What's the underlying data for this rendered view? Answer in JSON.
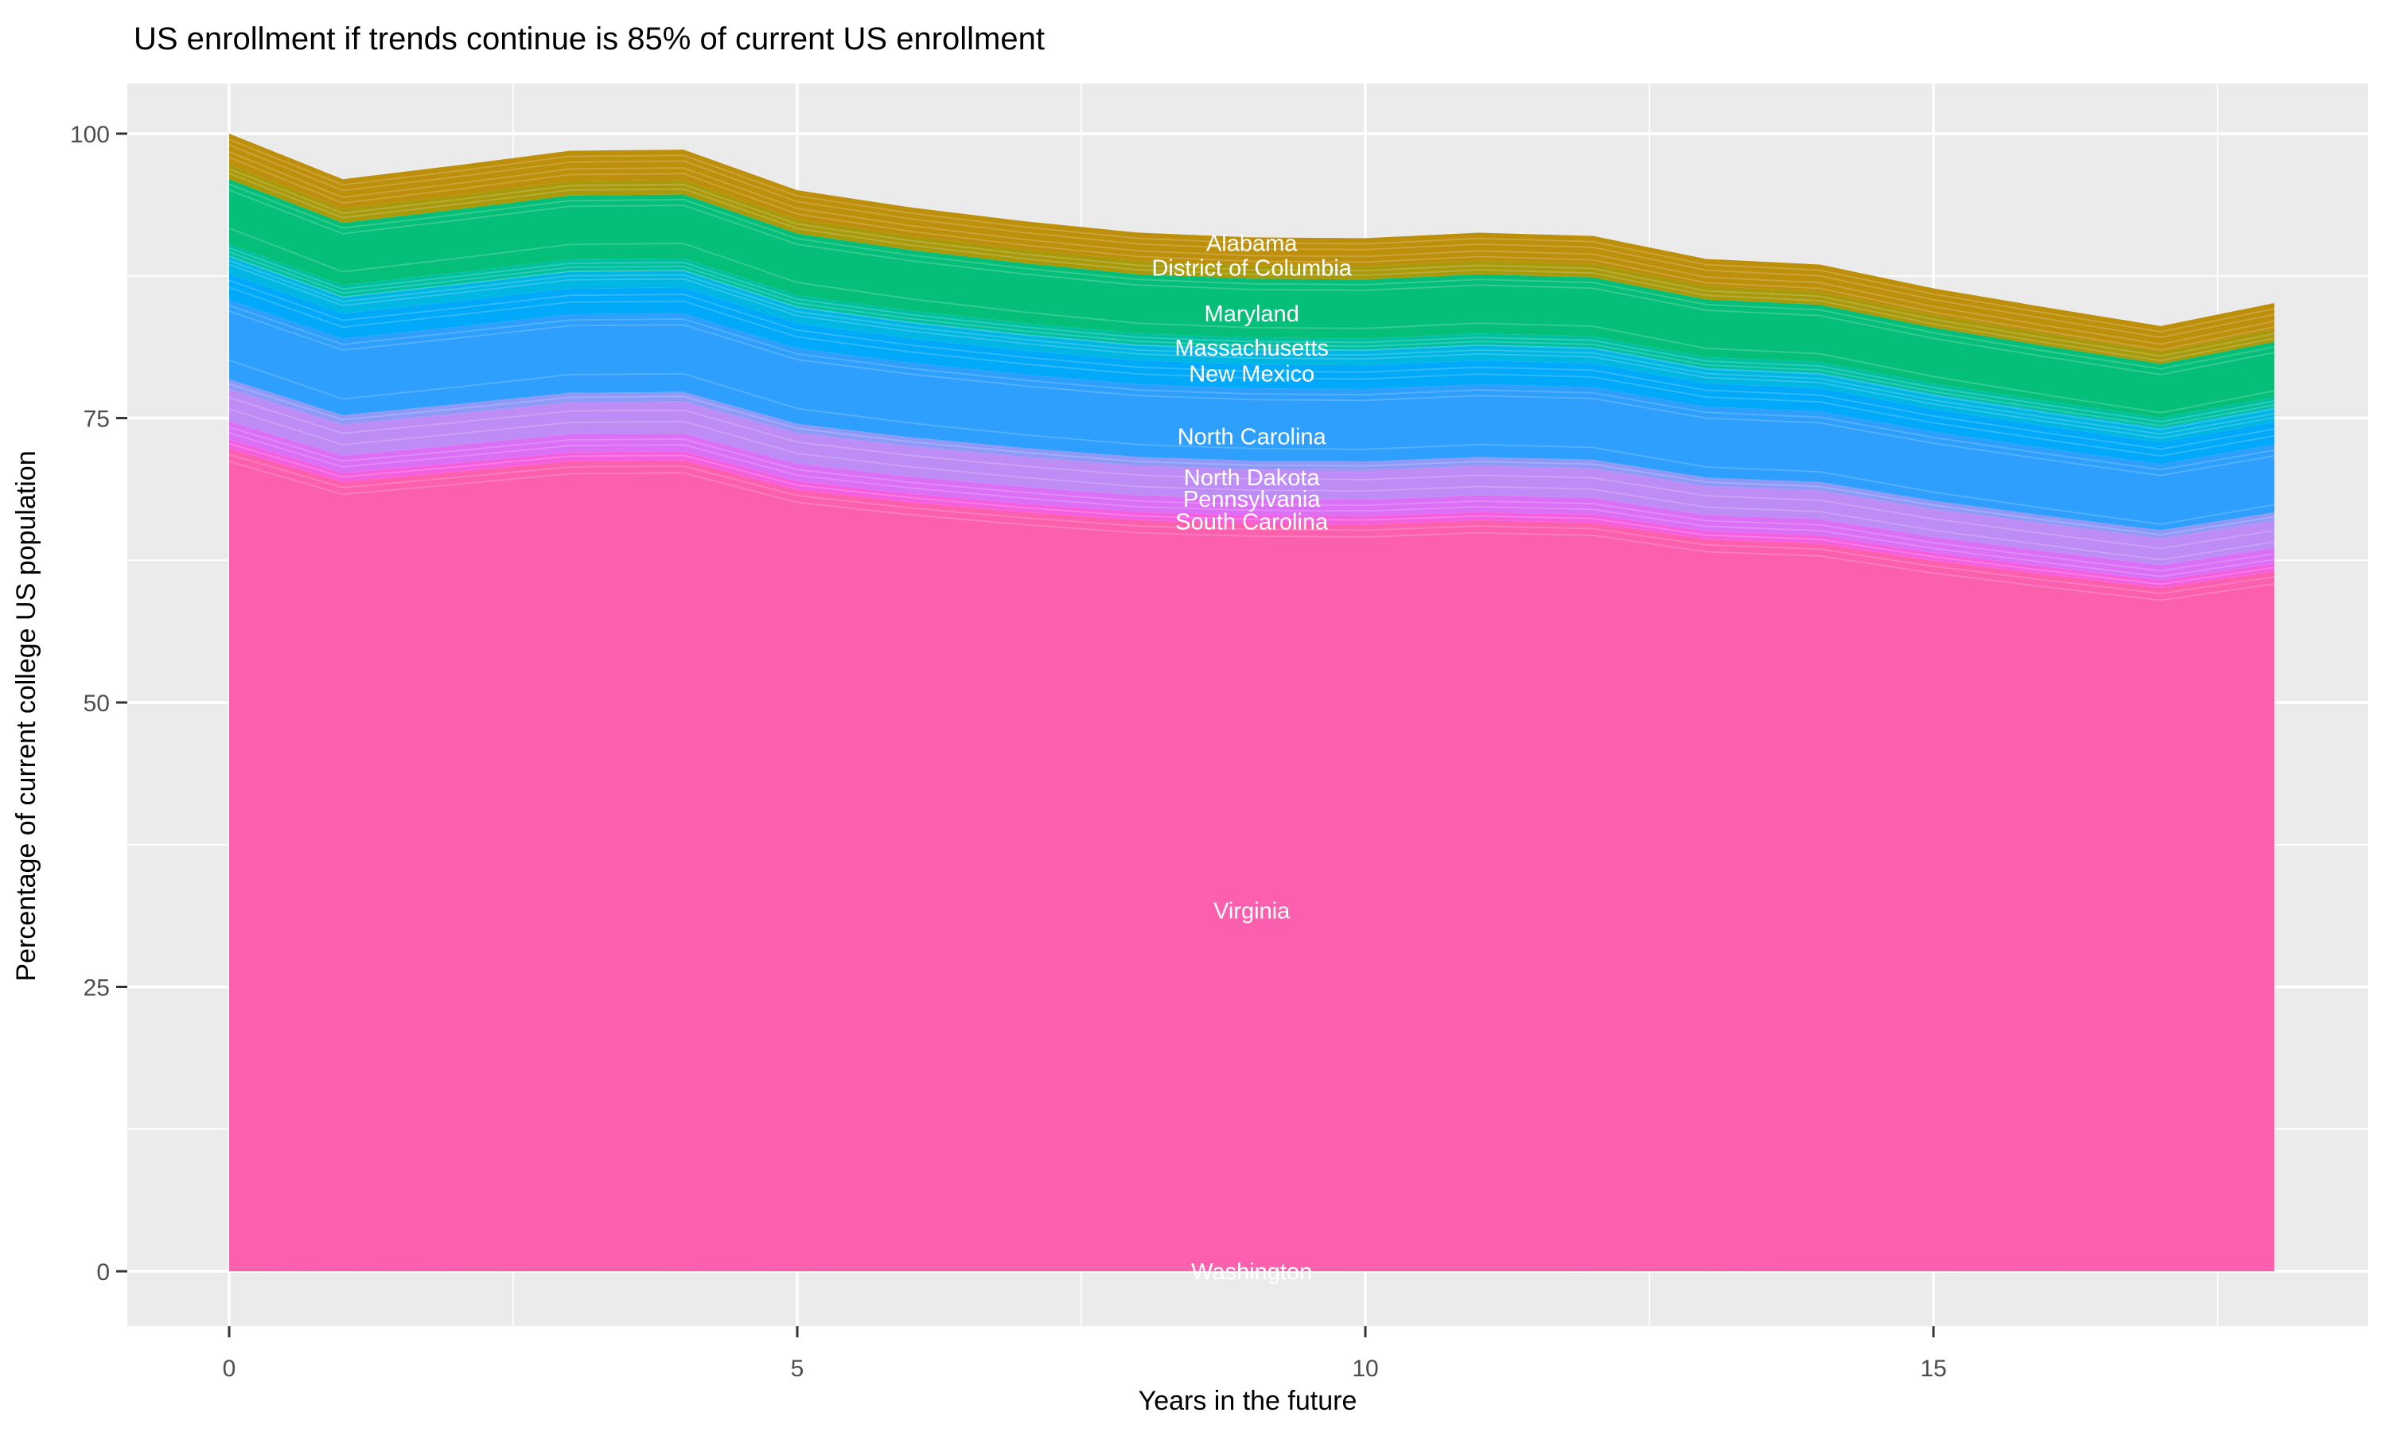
{
  "title": "US enrollment if trends continue is 85% of current US enrollment",
  "axes": {
    "x_title": "Years in the future",
    "y_title": "Percentage of current college US population"
  },
  "chart_data": {
    "type": "area",
    "stacked": true,
    "title": "US enrollment if trends continue is 85% of current US enrollment",
    "xlabel": "Years in the future",
    "ylabel": "Percentage of current college US population",
    "xlim": [
      0,
      18
    ],
    "ylim": [
      0,
      100
    ],
    "x_ticks": [
      0,
      5,
      10,
      15
    ],
    "y_ticks": [
      0,
      25,
      50,
      75,
      100
    ],
    "x_minor_gridlines": [
      2.5,
      7.5,
      12.5,
      17.5
    ],
    "y_minor_gridlines": [
      12.5,
      37.5,
      62.5,
      87.5
    ],
    "grid": true,
    "legend": "none",
    "panel_bg": "#EBEBEB",
    "grid_color": "#FFFFFF",
    "axis_text_color": "#4D4D4D",
    "area_label_color": "#FFFFFF",
    "x": [
      0,
      1,
      2,
      3,
      4,
      5,
      6,
      7,
      8,
      9,
      10,
      11,
      12,
      13,
      14,
      15,
      16,
      17,
      18
    ],
    "total_top": [
      100,
      96,
      97.2,
      98.5,
      98.6,
      95,
      93.5,
      92.3,
      91.3,
      90.9,
      90.8,
      91.3,
      91,
      89,
      88.5,
      86.4,
      84.7,
      83.1,
      85.1
    ],
    "stack_order": "bottom-to-top",
    "series": [
      {
        "name": "Washington",
        "color": "#FC5FAD",
        "values": [
          0.4,
          0.38,
          0.39,
          0.39,
          0.39,
          0.38,
          0.37,
          0.37,
          0.37,
          0.36,
          0.36,
          0.37,
          0.36,
          0.36,
          0.35,
          0.35,
          0.34,
          0.33,
          0.34
        ]
      },
      {
        "name": "Virginia",
        "color": "#FC5FAD",
        "values": [
          71.9,
          69.02,
          69.89,
          70.82,
          70.89,
          68.31,
          67.23,
          66.36,
          65.64,
          65.36,
          65.29,
          65.64,
          65.43,
          63.99,
          63.63,
          62.12,
          60.9,
          59.75,
          61.19
        ]
      },
      {
        "name": "South Carolina",
        "color": "#F55FDF",
        "values": [
          0.8,
          0.77,
          0.78,
          0.79,
          0.79,
          0.76,
          0.75,
          0.74,
          0.73,
          0.73,
          0.73,
          0.73,
          0.73,
          0.71,
          0.71,
          0.69,
          0.68,
          0.66,
          0.68
        ]
      },
      {
        "name": "Pennsylvania",
        "color": "#DB70F6",
        "values": [
          1.6,
          1.54,
          1.56,
          1.58,
          1.58,
          1.52,
          1.5,
          1.48,
          1.46,
          1.45,
          1.45,
          1.46,
          1.46,
          1.42,
          1.42,
          1.38,
          1.36,
          1.33,
          1.36
        ]
      },
      {
        "name": "North Dakota",
        "color": "#BE8CF5",
        "values": [
          3.7,
          3.55,
          3.6,
          3.64,
          3.65,
          3.52,
          3.46,
          3.42,
          3.38,
          3.36,
          3.36,
          3.38,
          3.37,
          3.29,
          3.27,
          3.2,
          3.13,
          3.07,
          3.15
        ]
      },
      {
        "name": "North Carolina",
        "color": "#2E9FFC",
        "values": [
          7.0,
          6.72,
          6.8,
          6.9,
          6.9,
          6.65,
          6.55,
          6.46,
          6.39,
          6.36,
          6.36,
          6.39,
          6.37,
          6.23,
          6.2,
          6.05,
          5.93,
          5.82,
          5.96
        ]
      },
      {
        "name": "New Mexico",
        "color": "#00A9F9",
        "values": [
          2.3,
          2.21,
          2.24,
          2.27,
          2.27,
          2.19,
          2.15,
          2.12,
          2.1,
          2.09,
          2.09,
          2.1,
          2.09,
          2.05,
          2.04,
          1.99,
          1.95,
          1.91,
          1.96
        ]
      },
      {
        "name": "Massachusetts",
        "color": "#00B8E0",
        "values": [
          2.6,
          2.5,
          2.53,
          2.56,
          2.56,
          2.47,
          2.43,
          2.4,
          2.37,
          2.36,
          2.36,
          2.37,
          2.37,
          2.31,
          2.3,
          2.25,
          2.2,
          2.16,
          2.21
        ]
      },
      {
        "name": "Maryland",
        "color": "#05BF79",
        "values": [
          5.7,
          5.47,
          5.54,
          5.61,
          5.62,
          5.42,
          5.33,
          5.26,
          5.2,
          5.18,
          5.18,
          5.2,
          5.19,
          5.07,
          5.04,
          4.92,
          4.83,
          4.74,
          4.85
        ]
      },
      {
        "name": "District of Columbia",
        "color": "#A89A0A",
        "values": [
          1.3,
          1.25,
          1.26,
          1.28,
          1.28,
          1.24,
          1.22,
          1.2,
          1.19,
          1.18,
          1.18,
          1.19,
          1.18,
          1.16,
          1.15,
          1.12,
          1.1,
          1.08,
          1.11
        ]
      },
      {
        "name": "Alabama",
        "color": "#BE8F0B",
        "values": [
          2.7,
          2.59,
          2.62,
          2.66,
          2.66,
          2.57,
          2.52,
          2.49,
          2.47,
          2.45,
          2.45,
          2.46,
          2.46,
          2.4,
          2.39,
          2.33,
          2.29,
          2.24,
          2.3
        ]
      }
    ],
    "area_labels": [
      {
        "text": "Alabama",
        "x": 9,
        "y": 90.4
      },
      {
        "text": "District of Columbia",
        "x": 9,
        "y": 88.2
      },
      {
        "text": "Maryland",
        "x": 9,
        "y": 84.2
      },
      {
        "text": "Massachusetts",
        "x": 9,
        "y": 81.2
      },
      {
        "text": "New Mexico",
        "x": 9,
        "y": 78.9
      },
      {
        "text": "North Carolina",
        "x": 9,
        "y": 73.4
      },
      {
        "text": "North Dakota",
        "x": 9,
        "y": 69.8
      },
      {
        "text": "Pennsylvania",
        "x": 9,
        "y": 67.9
      },
      {
        "text": "South Carolina",
        "x": 9,
        "y": 65.9
      },
      {
        "text": "Virginia",
        "x": 9,
        "y": 31.7
      },
      {
        "text": "Washington",
        "x": 9,
        "y": 0
      }
    ]
  }
}
